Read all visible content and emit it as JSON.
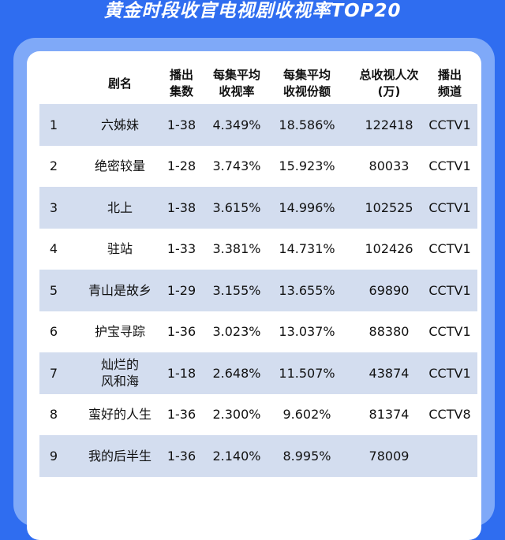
{
  "page": {
    "title": "黄金时段收官电视剧收视率TOP20"
  },
  "table": {
    "headers": {
      "name": "剧名",
      "episodes": "播出\n集数",
      "avg_rating": "每集平均\n收视率",
      "avg_share": "每集平均\n收视份额",
      "total_viewers": "总收视人次\n(万)",
      "channel": "播出\n频道"
    },
    "rows": [
      {
        "rank": "1",
        "name": "六姊妹",
        "episodes": "1-38",
        "avg_rating": "4.349%",
        "avg_share": "18.586%",
        "total_viewers": "122418",
        "channel": "CCTV1"
      },
      {
        "rank": "2",
        "name": "绝密较量",
        "episodes": "1-28",
        "avg_rating": "3.743%",
        "avg_share": "15.923%",
        "total_viewers": "80033",
        "channel": "CCTV1"
      },
      {
        "rank": "3",
        "name": "北上",
        "episodes": "1-38",
        "avg_rating": "3.615%",
        "avg_share": "14.996%",
        "total_viewers": "102525",
        "channel": "CCTV1"
      },
      {
        "rank": "4",
        "name": "驻站",
        "episodes": "1-33",
        "avg_rating": "3.381%",
        "avg_share": "14.731%",
        "total_viewers": "102426",
        "channel": "CCTV1"
      },
      {
        "rank": "5",
        "name": "青山是故乡",
        "episodes": "1-29",
        "avg_rating": "3.155%",
        "avg_share": "13.655%",
        "total_viewers": "69890",
        "channel": "CCTV1"
      },
      {
        "rank": "6",
        "name": "护宝寻踪",
        "episodes": "1-36",
        "avg_rating": "3.023%",
        "avg_share": "13.037%",
        "total_viewers": "88380",
        "channel": "CCTV1"
      },
      {
        "rank": "7",
        "name": "灿烂的\n风和海",
        "episodes": "1-18",
        "avg_rating": "2.648%",
        "avg_share": "11.507%",
        "total_viewers": "43874",
        "channel": "CCTV1"
      },
      {
        "rank": "8",
        "name": "蛮好的人生",
        "episodes": "1-36",
        "avg_rating": "2.300%",
        "avg_share": "9.602%",
        "total_viewers": "81374",
        "channel": "CCTV8"
      },
      {
        "rank": "9",
        "name": "我的后半生",
        "episodes": "1-36",
        "avg_rating": "2.140%",
        "avg_share": "8.995%",
        "total_viewers": "78009",
        "channel": ""
      }
    ]
  }
}
